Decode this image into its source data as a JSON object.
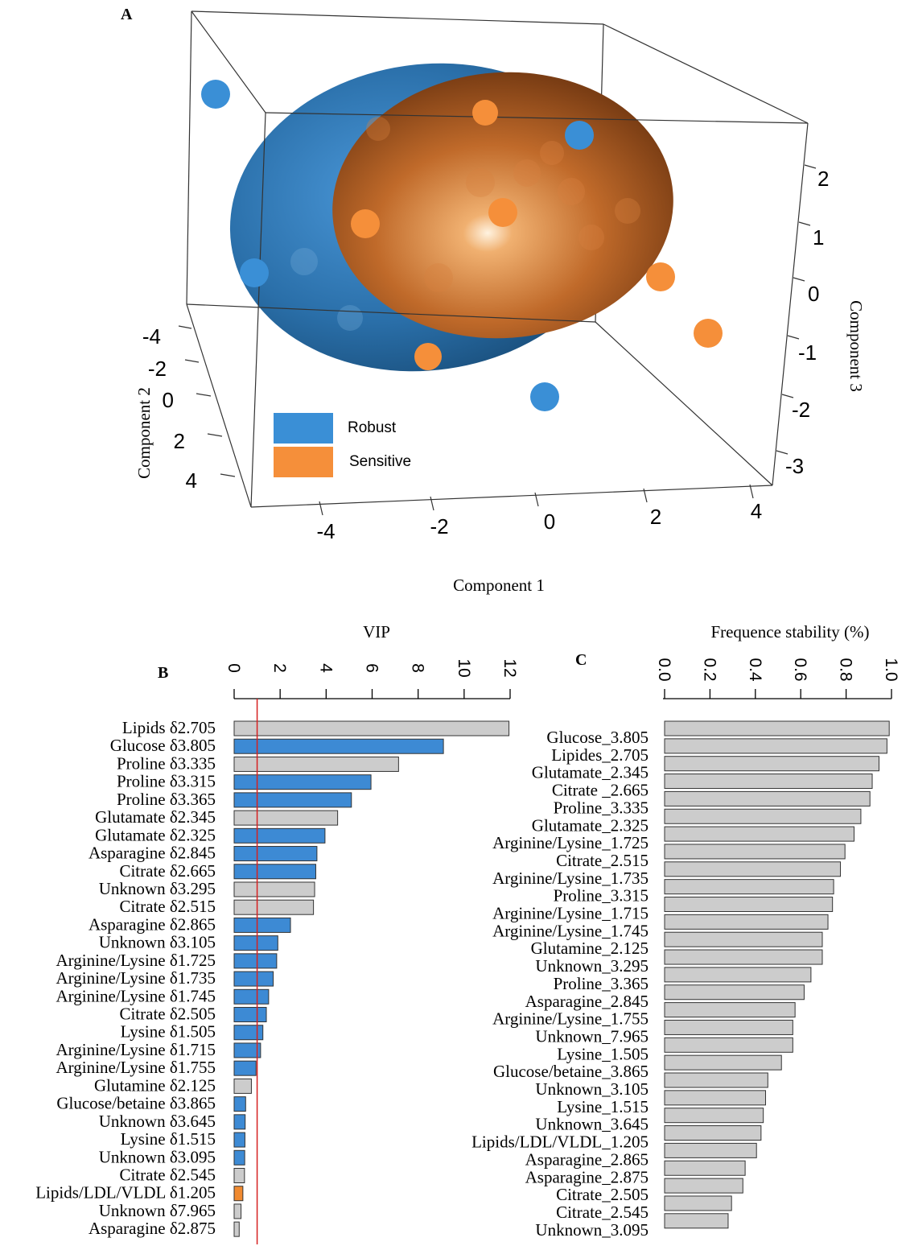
{
  "chart_data": [
    {
      "panel_label": "A",
      "type": "scatter",
      "dimension": "3d",
      "xlabel": "Component 1",
      "ylabel": "Component 2",
      "zlabel": "Component 3",
      "x_ticks": [
        "-4",
        "-2",
        "0",
        "2",
        "4"
      ],
      "y_ticks": [
        "-4",
        "-2",
        "0",
        "2",
        "4"
      ],
      "z_ticks": [
        "2",
        "1",
        "0",
        "-1",
        "-2",
        "-3"
      ],
      "legend": {
        "placement": "bottom-left",
        "entries": [
          {
            "label": "Robust",
            "color": "#3a8fd6"
          },
          {
            "label": "Sensitive",
            "color": "#f58f3a"
          }
        ]
      },
      "series": [
        {
          "name": "Robust",
          "color": "#3a8fd6",
          "ellipsoid_color": "#2f6fa6"
        },
        {
          "name": "Sensitive",
          "color": "#f58f3a",
          "ellipsoid_color": "#c8692a"
        }
      ]
    },
    {
      "panel_label": "B",
      "type": "bar",
      "orientation": "horizontal",
      "xlabel": "VIP",
      "xlim": [
        0,
        12
      ],
      "ticks": [
        "0",
        "2",
        "4",
        "6",
        "8",
        "10",
        "12"
      ],
      "threshold": 1,
      "threshold_color": "#d62020",
      "colors": {
        "blue": "#3d8ad4",
        "gray": "#cccccc",
        "orange": "#f08a30"
      },
      "categories": [
        "Lipids δ2.705",
        "Glucose δ3.805",
        "Proline δ3.335",
        "Proline δ3.315",
        "Proline δ3.365",
        "Glutamate δ2.345",
        "Glutamate δ2.325",
        "Asparagine δ2.845",
        "Citrate δ2.665",
        "Unknown δ3.295",
        "Citrate δ2.515",
        "Asparagine δ2.865",
        "Unknown δ3.105",
        "Arginine/Lysine δ1.725",
        "Arginine/Lysine δ1.735",
        "Arginine/Lysine δ1.745",
        "Citrate δ2.505",
        "Lysine δ1.505",
        "Arginine/Lysine δ1.715",
        "Arginine/Lysine δ1.755",
        "Glutamine δ2.125",
        "Glucose/betaine δ3.865",
        "Unknown δ3.645",
        "Lysine δ1.515",
        "Unknown δ3.095",
        "Citrate δ2.545",
        "Lipids/LDL/VLDL δ1.205",
        "Unknown δ7.965",
        "Asparagine δ2.875"
      ],
      "values": [
        11.95,
        9.1,
        7.15,
        5.95,
        5.1,
        4.5,
        3.95,
        3.6,
        3.55,
        3.5,
        3.45,
        2.45,
        1.9,
        1.85,
        1.7,
        1.5,
        1.4,
        1.25,
        1.15,
        0.95,
        0.75,
        0.5,
        0.48,
        0.47,
        0.46,
        0.45,
        0.38,
        0.3,
        0.22
      ],
      "bar_colors": [
        "gray",
        "blue",
        "gray",
        "blue",
        "blue",
        "gray",
        "blue",
        "blue",
        "blue",
        "gray",
        "gray",
        "blue",
        "blue",
        "blue",
        "blue",
        "blue",
        "blue",
        "blue",
        "blue",
        "blue",
        "gray",
        "blue",
        "blue",
        "blue",
        "blue",
        "gray",
        "orange",
        "gray",
        "gray"
      ]
    },
    {
      "panel_label": "C",
      "type": "bar",
      "orientation": "horizontal",
      "xlabel": "Frequence stability (%)",
      "xlim": [
        0,
        1
      ],
      "ticks": [
        "0.0",
        "0.2",
        "0.4",
        "0.6",
        "0.8",
        "1.0"
      ],
      "bar_color": "#cccccc",
      "categories": [
        "Glucose_3.805",
        "Lipides_2.705",
        "Glutamate_2.345",
        "Citrate _2.665",
        "Proline_3.335",
        "Glutamate_2.325",
        "Arginine/Lysine_1.725",
        "Citrate_2.515",
        "Arginine/Lysine_1.735",
        "Proline_3.315",
        "Arginine/Lysine_1.715",
        "Arginine/Lysine_1.745",
        "Glutamine_2.125",
        "Unknown_3.295",
        "Proline_3.365",
        "Asparagine_2.845",
        "Arginine/Lysine_1.755",
        "Unknown_7.965",
        "Lysine_1.505",
        "Glucose/betaine_3.865",
        "Unknown_3.105",
        "Lysine_1.515",
        "Unknown_3.645",
        "Lipids/LDL/VLDL_1.205",
        "Asparagine_2.865",
        "Asparagine_2.875",
        "Citrate_2.505",
        "Citrate_2.545",
        "Unknown_3.095"
      ],
      "values": [
        0.99,
        0.98,
        0.945,
        0.915,
        0.905,
        0.865,
        0.835,
        0.795,
        0.775,
        0.745,
        0.74,
        0.72,
        0.695,
        0.695,
        0.645,
        0.615,
        0.575,
        0.565,
        0.565,
        0.515,
        0.455,
        0.445,
        0.435,
        0.425,
        0.405,
        0.355,
        0.345,
        0.295,
        0.28
      ]
    }
  ]
}
